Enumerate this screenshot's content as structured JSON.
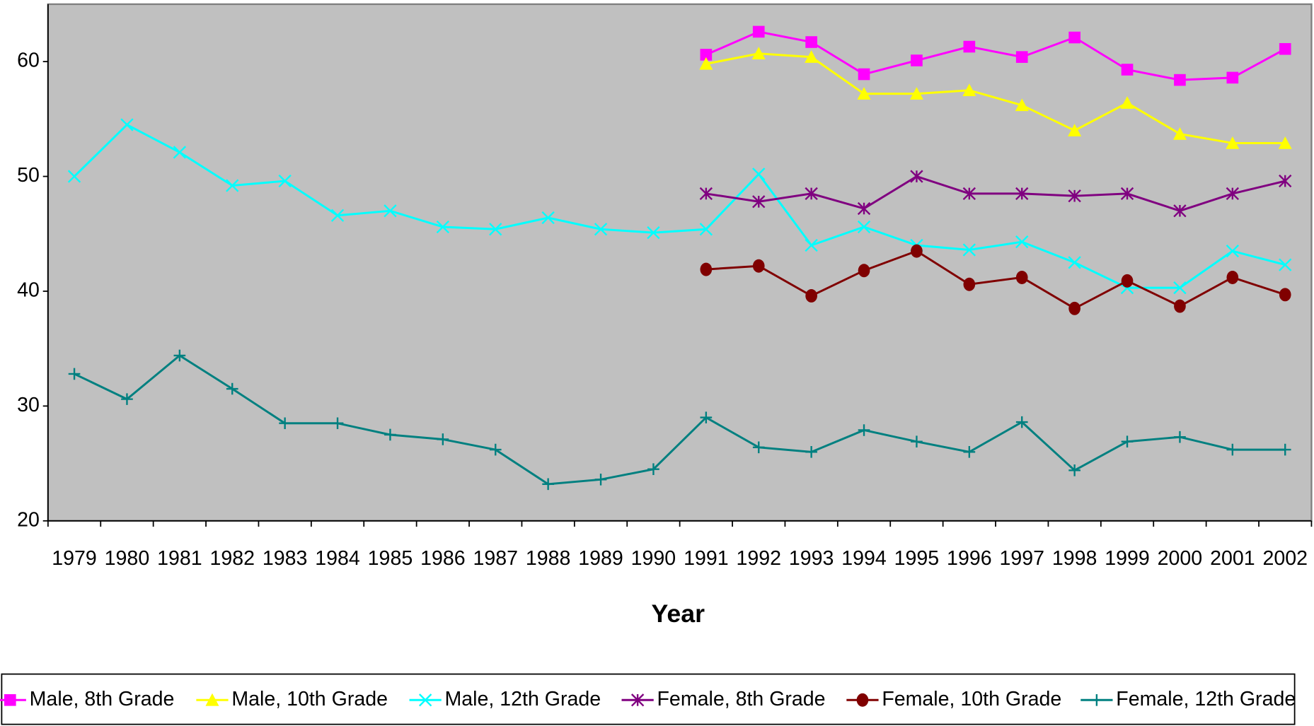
{
  "chart_data": {
    "type": "line",
    "x_label": "Year",
    "categories": [
      "1979",
      "1980",
      "1981",
      "1982",
      "1983",
      "1984",
      "1985",
      "1986",
      "1987",
      "1988",
      "1989",
      "1990",
      "1991",
      "1992",
      "1993",
      "1994",
      "1995",
      "1996",
      "1997",
      "1998",
      "1999",
      "2000",
      "2001",
      "2002"
    ],
    "ylim": [
      20,
      65
    ],
    "yticks": [
      20,
      30,
      40,
      50,
      60
    ],
    "series": [
      {
        "name": "Male, 8th Grade",
        "color": "#ff00ff",
        "marker": "square",
        "values": [
          null,
          null,
          null,
          null,
          null,
          null,
          null,
          null,
          null,
          null,
          null,
          null,
          60.6,
          62.6,
          61.7,
          58.9,
          60.1,
          61.3,
          60.4,
          62.1,
          59.3,
          58.4,
          58.6,
          61.1
        ]
      },
      {
        "name": "Male, 10th Grade",
        "color": "#ffff00",
        "marker": "triangle",
        "values": [
          null,
          null,
          null,
          null,
          null,
          null,
          null,
          null,
          null,
          null,
          null,
          null,
          59.8,
          60.7,
          60.4,
          57.2,
          57.2,
          57.5,
          56.2,
          54.0,
          56.4,
          53.7,
          52.9,
          52.9
        ]
      },
      {
        "name": "Male, 12th Grade",
        "color": "#00ffff",
        "marker": "x",
        "values": [
          50.0,
          54.5,
          52.1,
          49.2,
          49.6,
          46.6,
          47.0,
          45.6,
          45.4,
          46.4,
          45.4,
          45.1,
          45.4,
          50.2,
          44.0,
          45.6,
          44.0,
          43.6,
          44.3,
          42.5,
          40.3,
          40.3,
          43.5,
          42.3
        ]
      },
      {
        "name": "Female, 8th Grade",
        "color": "#800080",
        "marker": "asterisk",
        "values": [
          null,
          null,
          null,
          null,
          null,
          null,
          null,
          null,
          null,
          null,
          null,
          null,
          48.5,
          47.8,
          48.5,
          47.2,
          50.0,
          48.5,
          48.5,
          48.3,
          48.5,
          47.0,
          48.5,
          49.6
        ]
      },
      {
        "name": "Female, 10th Grade",
        "color": "#800000",
        "marker": "circle",
        "values": [
          null,
          null,
          null,
          null,
          null,
          null,
          null,
          null,
          null,
          null,
          null,
          null,
          41.9,
          42.2,
          39.6,
          41.8,
          43.5,
          40.6,
          41.2,
          38.5,
          40.9,
          38.7,
          41.2,
          39.7
        ]
      },
      {
        "name": "Female, 12th Grade",
        "color": "#008080",
        "marker": "plus",
        "values": [
          32.8,
          30.6,
          34.4,
          31.5,
          28.5,
          28.5,
          27.5,
          27.1,
          26.2,
          23.2,
          23.6,
          24.5,
          29.0,
          26.4,
          26.0,
          27.9,
          26.9,
          26.0,
          28.6,
          24.4,
          26.9,
          27.3,
          26.2,
          26.2
        ]
      }
    ]
  }
}
